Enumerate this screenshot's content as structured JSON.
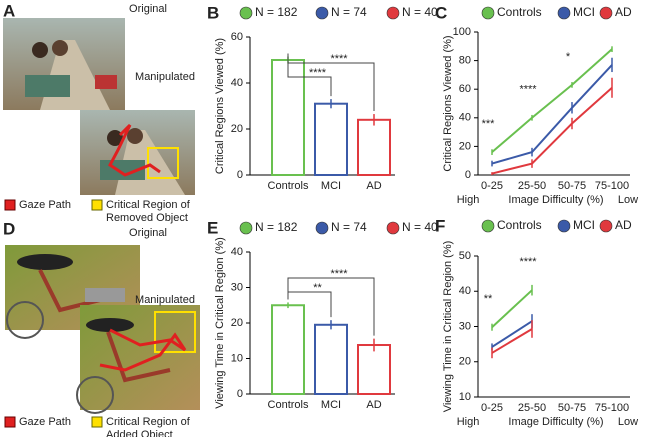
{
  "image_panels": [
    {
      "label": "A",
      "original": "Original",
      "manipulated": "Manipulated",
      "legend": [
        "Gaze Path"
      ],
      "legend_region": [
        "Critical Region of",
        "Removed Object"
      ]
    },
    {
      "label": "D",
      "original": "Original",
      "manipulated": "Manipulated",
      "legend": [
        "Gaze Path"
      ],
      "legend_region": [
        "Critical Region of",
        "Added Object"
      ]
    }
  ],
  "chart_data": [
    {
      "type": "bar",
      "label": "B",
      "y_label": "Critical Regions Viewed (%)",
      "legend": [
        "N = 182",
        "N = 74",
        "N = 40"
      ],
      "categories": [
        "Controls",
        "MCI",
        "AD"
      ],
      "values": [
        50,
        31,
        24
      ],
      "errors": [
        1.5,
        2,
        2.5
      ],
      "colors": [
        "#69c04f",
        "#3b5aa8",
        "#e0393e"
      ],
      "ylim": [
        0,
        60
      ],
      "yticks": [
        0,
        20,
        40,
        60
      ],
      "annotations": [
        "****",
        "****"
      ]
    },
    {
      "type": "line",
      "label": "C",
      "y_label": "Critical Regions Viewed (%)",
      "x_label": "Image Difficulty (%)",
      "x_label_left": "High",
      "x_label_right": "Low",
      "categories": [
        "0-25",
        "25-50",
        "50-75",
        "75-100"
      ],
      "series": [
        {
          "name": "Controls",
          "color": "#69c04f",
          "values": [
            16,
            40,
            63,
            88
          ],
          "errors": [
            2,
            2,
            2,
            2
          ]
        },
        {
          "name": "MCI",
          "color": "#3b5aa8",
          "values": [
            8,
            16,
            47,
            77
          ],
          "errors": [
            2,
            3,
            4,
            5
          ]
        },
        {
          "name": "AD",
          "color": "#e0393e",
          "values": [
            1,
            8,
            36,
            61
          ],
          "errors": [
            1,
            3,
            4,
            7
          ]
        }
      ],
      "ylim": [
        0,
        100
      ],
      "yticks": [
        0,
        20,
        40,
        60,
        80,
        100
      ],
      "annotations": [
        "***",
        "****",
        "*"
      ]
    },
    {
      "type": "bar",
      "label": "E",
      "y_label": "Viewing Time in Critical Region (%)",
      "legend": [
        "N = 182",
        "N = 74",
        "N = 40"
      ],
      "categories": [
        "Controls",
        "MCI",
        "AD"
      ],
      "values": [
        25,
        19.5,
        13.8
      ],
      "errors": [
        0.8,
        1.3,
        1.8
      ],
      "colors": [
        "#69c04f",
        "#3b5aa8",
        "#e0393e"
      ],
      "ylim": [
        0,
        40
      ],
      "yticks": [
        0,
        10,
        20,
        30,
        40
      ],
      "annotations": [
        "**",
        "****"
      ]
    },
    {
      "type": "line",
      "label": "F",
      "y_label": "Viewing Time in Critical Region (%)",
      "x_label": "Image Difficulty (%)",
      "x_label_left": "High",
      "x_label_right": "Low",
      "categories": [
        "0-25",
        "25-50",
        "50-75",
        "75-100"
      ],
      "series": [
        {
          "name": "Controls",
          "color": "#69c04f",
          "values": [
            29.8,
            40.3,
            null,
            null
          ],
          "errors": [
            1,
            1.5,
            null,
            null
          ]
        },
        {
          "name": "MCI",
          "color": "#3b5aa8",
          "values": [
            24.2,
            31.5,
            null,
            null
          ],
          "errors": [
            1,
            2,
            null,
            null
          ]
        },
        {
          "name": "AD",
          "color": "#e0393e",
          "values": [
            22.5,
            29.3,
            null,
            null
          ],
          "errors": [
            1.5,
            2.5,
            null,
            null
          ]
        }
      ],
      "ylim": [
        10,
        50
      ],
      "yticks": [
        10,
        20,
        30,
        40,
        50
      ],
      "annotations": [
        "**",
        "****"
      ]
    }
  ]
}
